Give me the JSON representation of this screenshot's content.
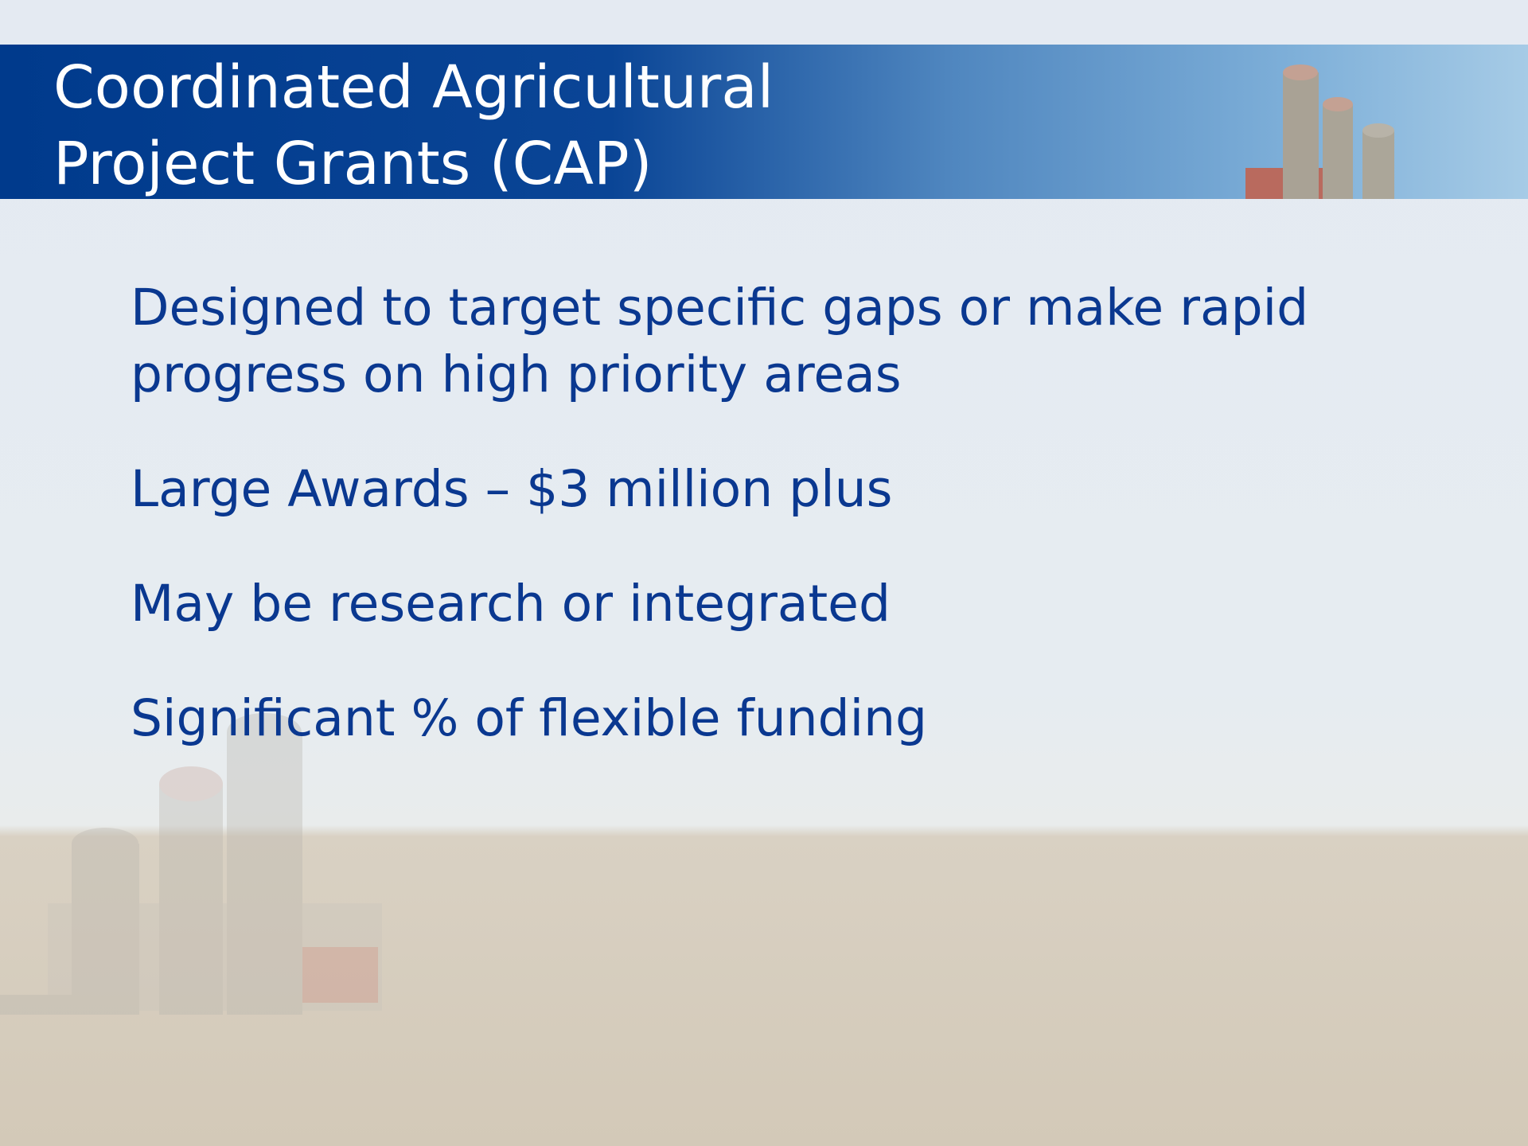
{
  "title": [
    "Coordinated Agricultural",
    "Project Grants (CAP)"
  ],
  "bullets": [
    "Designed to target specific gaps or make rapid progress on high priority areas",
    "Large Awards – $3 million plus",
    "May be research or integrated",
    "Significant % of flexible funding"
  ]
}
